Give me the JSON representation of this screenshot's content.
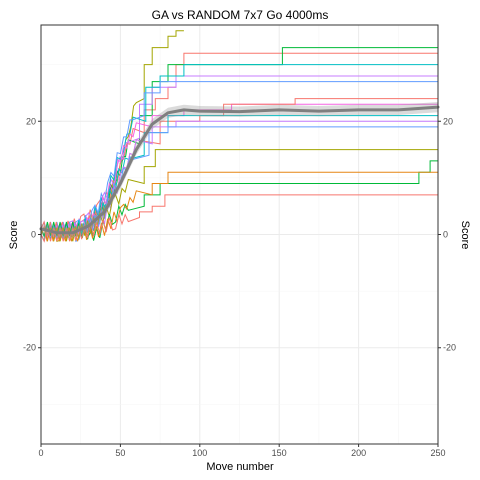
{
  "chart_data": {
    "type": "line",
    "title": "GA vs RANDOM 7x7 Go 4000ms",
    "xlabel": "Move number",
    "ylabel": "Score",
    "ylabel_right": "Score",
    "xlim": [
      0,
      250
    ],
    "ylim": [
      -37,
      37
    ],
    "x_ticks": [
      0,
      50,
      100,
      150,
      200,
      250
    ],
    "y_ticks": [
      -20,
      0,
      20
    ],
    "grid": true,
    "legend": "none",
    "series": [
      {
        "color": "#a3a500",
        "points": [
          [
            0,
            1
          ],
          [
            10,
            0
          ],
          [
            20,
            1
          ],
          [
            28,
            2
          ],
          [
            35,
            3
          ],
          [
            42,
            6
          ],
          [
            50,
            12
          ],
          [
            55,
            18
          ],
          [
            60,
            24
          ],
          [
            65,
            30
          ],
          [
            70,
            33
          ],
          [
            80,
            35
          ],
          [
            85,
            36
          ],
          [
            90,
            36
          ]
        ]
      },
      {
        "color": "#f8766d",
        "points": [
          [
            0,
            0
          ],
          [
            15,
            1
          ],
          [
            25,
            2
          ],
          [
            35,
            4
          ],
          [
            45,
            8
          ],
          [
            52,
            14
          ],
          [
            58,
            18
          ],
          [
            65,
            22
          ],
          [
            72,
            24
          ],
          [
            80,
            26
          ],
          [
            85,
            30
          ],
          [
            90,
            32
          ],
          [
            250,
            32
          ]
        ]
      },
      {
        "color": "#00ba38",
        "points": [
          [
            0,
            1
          ],
          [
            20,
            0
          ],
          [
            30,
            1
          ],
          [
            40,
            5
          ],
          [
            48,
            10
          ],
          [
            55,
            16
          ],
          [
            62,
            21
          ],
          [
            70,
            27
          ],
          [
            80,
            30
          ],
          [
            150,
            30
          ],
          [
            152,
            33
          ],
          [
            250,
            33
          ]
        ]
      },
      {
        "color": "#c77cff",
        "points": [
          [
            0,
            0
          ],
          [
            18,
            1
          ],
          [
            28,
            2
          ],
          [
            38,
            5
          ],
          [
            48,
            11
          ],
          [
            55,
            17
          ],
          [
            62,
            23
          ],
          [
            70,
            26
          ],
          [
            85,
            28
          ],
          [
            250,
            28
          ]
        ]
      },
      {
        "color": "#00bfc4",
        "points": [
          [
            0,
            0
          ],
          [
            20,
            1
          ],
          [
            30,
            2
          ],
          [
            40,
            6
          ],
          [
            50,
            14
          ],
          [
            58,
            20
          ],
          [
            66,
            26
          ],
          [
            75,
            28
          ],
          [
            90,
            30
          ],
          [
            110,
            30
          ],
          [
            200,
            30
          ],
          [
            250,
            30
          ]
        ]
      },
      {
        "color": "#619cff",
        "points": [
          [
            0,
            1
          ],
          [
            22,
            1
          ],
          [
            32,
            3
          ],
          [
            42,
            8
          ],
          [
            50,
            15
          ],
          [
            58,
            21
          ],
          [
            65,
            25
          ],
          [
            75,
            27
          ],
          [
            150,
            27
          ],
          [
            248,
            27
          ],
          [
            250,
            28
          ]
        ]
      },
      {
        "color": "#f564e3",
        "points": [
          [
            0,
            0
          ],
          [
            25,
            1
          ],
          [
            35,
            3
          ],
          [
            45,
            9
          ],
          [
            52,
            15
          ],
          [
            60,
            19
          ],
          [
            70,
            21
          ],
          [
            90,
            22
          ],
          [
            110,
            22
          ],
          [
            120,
            23
          ],
          [
            240,
            23
          ],
          [
            250,
            24
          ]
        ]
      },
      {
        "color": "#f8766d",
        "points": [
          [
            0,
            1
          ],
          [
            25,
            1
          ],
          [
            40,
            4
          ],
          [
            50,
            10
          ],
          [
            60,
            16
          ],
          [
            75,
            20
          ],
          [
            100,
            21
          ],
          [
            115,
            23
          ],
          [
            145,
            23
          ],
          [
            160,
            24
          ],
          [
            230,
            24
          ],
          [
            250,
            32
          ]
        ]
      },
      {
        "color": "#00bfc4",
        "points": [
          [
            0,
            0
          ],
          [
            20,
            1
          ],
          [
            35,
            2
          ],
          [
            45,
            8
          ],
          [
            55,
            14
          ],
          [
            65,
            18
          ],
          [
            80,
            21
          ],
          [
            150,
            21
          ],
          [
            250,
            21
          ]
        ]
      },
      {
        "color": "#c77cff",
        "points": [
          [
            0,
            0
          ],
          [
            25,
            1
          ],
          [
            40,
            3
          ],
          [
            50,
            10
          ],
          [
            60,
            16
          ],
          [
            70,
            19
          ],
          [
            85,
            20
          ],
          [
            250,
            20
          ]
        ]
      },
      {
        "color": "#619cff",
        "points": [
          [
            0,
            1
          ],
          [
            22,
            0
          ],
          [
            38,
            3
          ],
          [
            48,
            9
          ],
          [
            58,
            14
          ],
          [
            68,
            18
          ],
          [
            80,
            19
          ],
          [
            250,
            19
          ]
        ]
      },
      {
        "color": "#a3a500",
        "points": [
          [
            0,
            0
          ],
          [
            20,
            0
          ],
          [
            35,
            2
          ],
          [
            45,
            5
          ],
          [
            55,
            9
          ],
          [
            65,
            12
          ],
          [
            72,
            15
          ],
          [
            250,
            15
          ]
        ]
      },
      {
        "color": "#00ba38",
        "points": [
          [
            0,
            1
          ],
          [
            20,
            1
          ],
          [
            35,
            0
          ],
          [
            45,
            3
          ],
          [
            55,
            5
          ],
          [
            65,
            7
          ],
          [
            75,
            9
          ],
          [
            230,
            9
          ],
          [
            238,
            11
          ],
          [
            245,
            13
          ],
          [
            250,
            13
          ]
        ]
      },
      {
        "color": "#e68613",
        "points": [
          [
            0,
            0
          ],
          [
            25,
            0
          ],
          [
            40,
            1
          ],
          [
            50,
            4
          ],
          [
            60,
            7
          ],
          [
            70,
            9
          ],
          [
            80,
            11
          ],
          [
            250,
            11
          ]
        ]
      },
      {
        "color": "#f8766d",
        "points": [
          [
            0,
            0
          ],
          [
            20,
            0
          ],
          [
            35,
            1
          ],
          [
            45,
            2
          ],
          [
            55,
            3
          ],
          [
            62,
            4
          ],
          [
            70,
            5
          ],
          [
            78,
            7
          ],
          [
            250,
            7
          ]
        ]
      }
    ],
    "smooth": {
      "color": "#7f7f7f",
      "points": [
        [
          0,
          1
        ],
        [
          10,
          0.3
        ],
        [
          20,
          0.3
        ],
        [
          30,
          1.5
        ],
        [
          40,
          4
        ],
        [
          50,
          9
        ],
        [
          60,
          15
        ],
        [
          70,
          19.5
        ],
        [
          80,
          21.5
        ],
        [
          90,
          22
        ],
        [
          100,
          21.8
        ],
        [
          125,
          21.7
        ],
        [
          150,
          22
        ],
        [
          175,
          21.8
        ],
        [
          200,
          22
        ],
        [
          225,
          22
        ],
        [
          250,
          22.5
        ]
      ]
    }
  }
}
